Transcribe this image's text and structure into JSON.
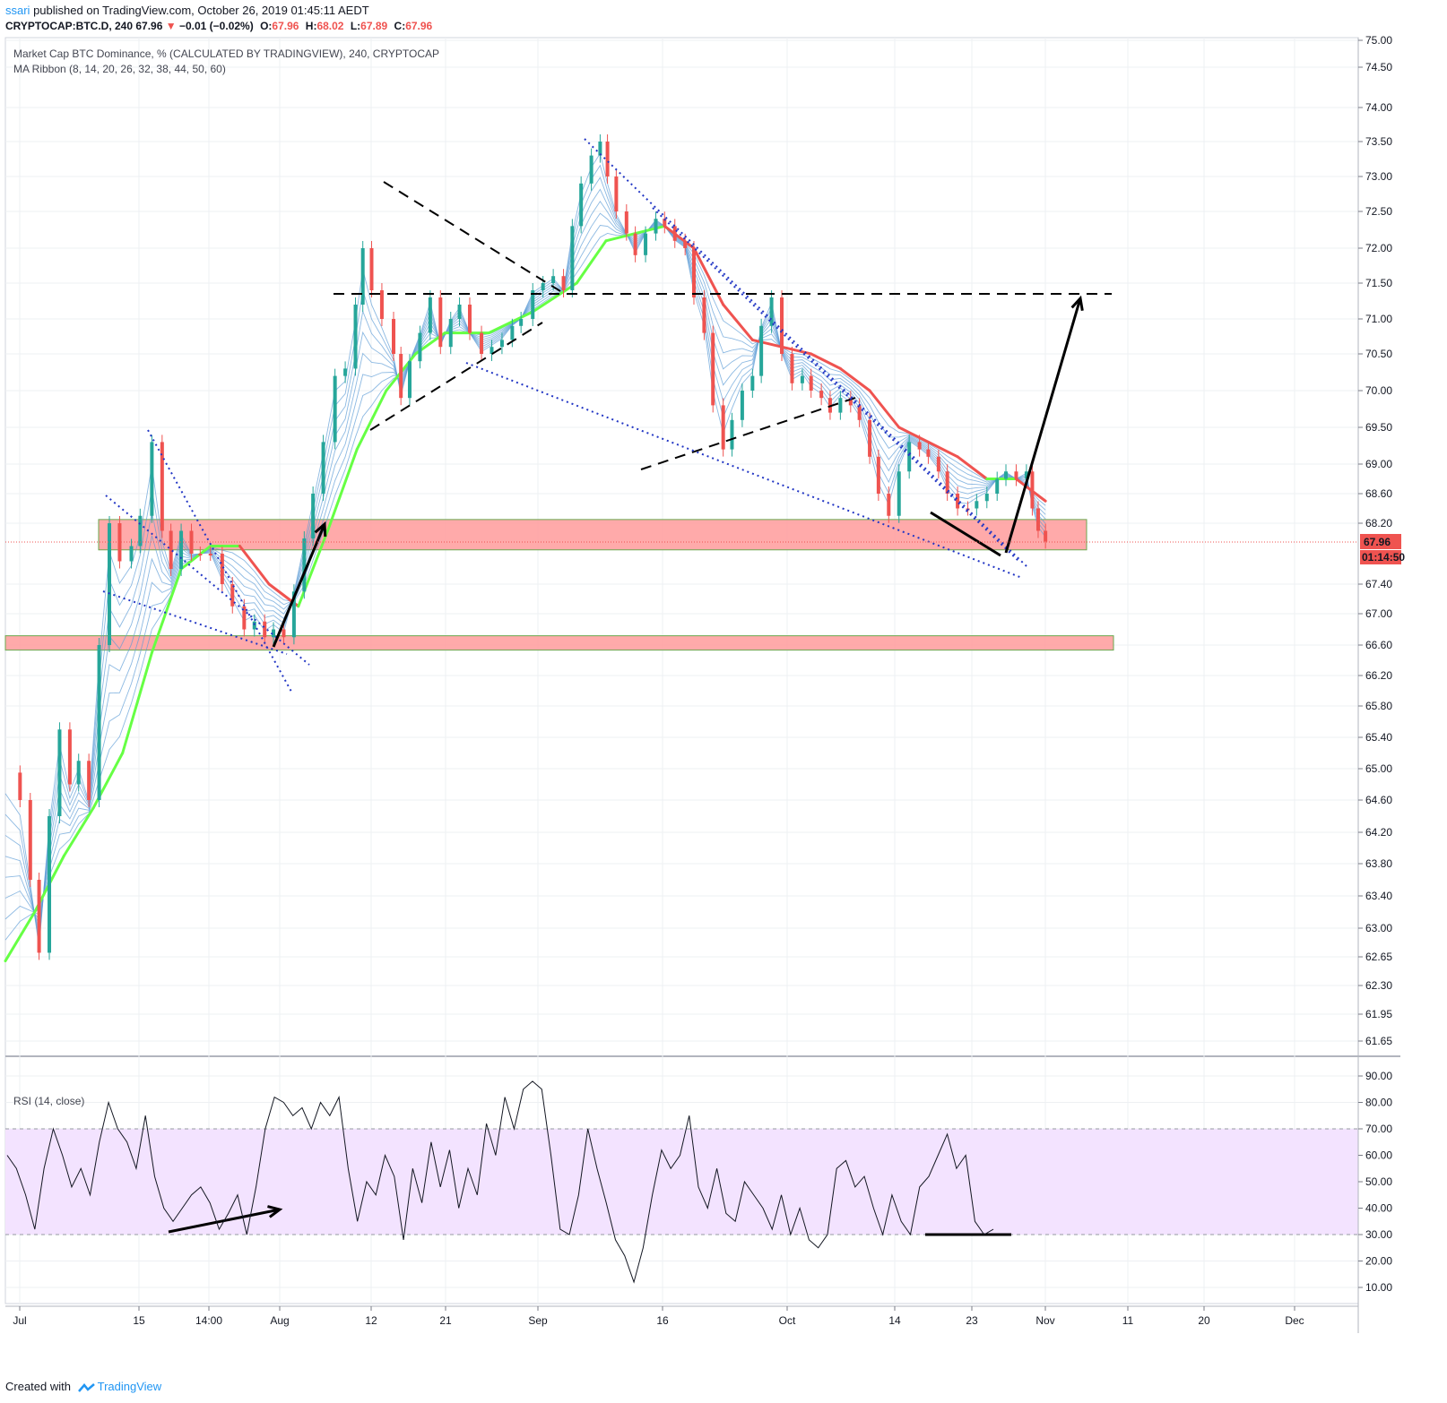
{
  "header": {
    "user": "ssari",
    "published_text": " published on TradingView.com, October 26, 2019 01:45:11 AEDT",
    "symbol_line": "CRYPTOCAP:BTC.D, 240",
    "last": "67.96",
    "change_icon": "down-triangle-icon",
    "change": "−0.01 (−0.02%)",
    "o_label": "O:",
    "o": "67.96",
    "h_label": "H:",
    "h": "68.02",
    "l_label": "L:",
    "l": "67.89",
    "c_label": "C:",
    "c": "67.96"
  },
  "legend": {
    "main_series": "Market Cap BTC Dominance, % (CALCULATED BY TRADINGVIEW), 240, CRYPTOCAP",
    "indicator": "MA Ribbon (8, 14, 20, 26, 32, 38, 44, 50, 60)",
    "rsi": "RSI (14, close)"
  },
  "footer": {
    "created_with": "Created with",
    "brand": "TradingView"
  },
  "colors": {
    "candle_up": "#26a69a",
    "candle_down": "#ef5350",
    "ribbon": "#5b9bd5",
    "ma_green": "#66ff44",
    "ma_red": "#ef5350",
    "zone": "#ff9b9b",
    "zone_border": "#6aa84f",
    "rsi_band": "#f3e3ff",
    "last_price_bg": "#ef5350"
  },
  "chart_data": [
    {
      "type": "line",
      "title": "Market Cap BTC Dominance, % (CALCULATED BY TRADINGVIEW), 240, CRYPTOCAP",
      "x_ticks": [
        "Jul",
        "15",
        "14:00",
        "Aug",
        "12",
        "21",
        "Sep",
        "16",
        "Oct",
        "14",
        "23",
        "Nov",
        "11",
        "20",
        "Dec"
      ],
      "y_ticks": [
        "75.00",
        "74.50",
        "74.00",
        "73.50",
        "73.00",
        "72.50",
        "72.00",
        "71.50",
        "71.00",
        "70.50",
        "70.00",
        "69.50",
        "69.00",
        "68.60",
        "68.20",
        "67.40",
        "67.00",
        "66.60",
        "66.20",
        "65.80",
        "65.40",
        "65.00",
        "64.60",
        "64.20",
        "63.80",
        "63.40",
        "63.00",
        "62.65",
        "62.30",
        "61.95",
        "61.65"
      ],
      "last_price_label": "67.96",
      "countdown_label": "01:14:50",
      "grid": true,
      "series": [
        {
          "name": "",
          "role": "price",
          "points": [
            [
              0,
              64.95
            ],
            [
              0.01,
              64.6
            ],
            [
              0.017,
              63.6
            ],
            [
              0.023,
              62.7
            ],
            [
              0.03,
              64.4
            ],
            [
              0.037,
              65.5
            ],
            [
              0.044,
              64.8
            ],
            [
              0.05,
              65.1
            ],
            [
              0.057,
              64.6
            ],
            [
              0.064,
              66.6
            ],
            [
              0.071,
              68.2
            ],
            [
              0.078,
              67.7
            ],
            [
              0.086,
              67.9
            ],
            [
              0.092,
              68.3
            ],
            [
              0.1,
              69.3
            ],
            [
              0.107,
              68.1
            ],
            [
              0.113,
              67.6
            ],
            [
              0.12,
              68.1
            ],
            [
              0.127,
              67.8
            ],
            [
              0.133,
              67.8
            ],
            [
              0.14,
              67.8
            ],
            [
              0.148,
              67.4
            ],
            [
              0.155,
              67.1
            ],
            [
              0.163,
              66.8
            ],
            [
              0.17,
              66.9
            ],
            [
              0.177,
              66.7
            ],
            [
              0.183,
              66.8
            ],
            [
              0.19,
              66.7
            ],
            [
              0.197,
              67.3
            ],
            [
              0.204,
              68.0
            ],
            [
              0.21,
              68.6
            ],
            [
              0.217,
              69.3
            ],
            [
              0.225,
              70.2
            ],
            [
              0.232,
              70.3
            ],
            [
              0.239,
              71.2
            ],
            [
              0.244,
              72.0
            ],
            [
              0.25,
              71.4
            ],
            [
              0.257,
              71.0
            ],
            [
              0.265,
              70.5
            ],
            [
              0.27,
              69.9
            ],
            [
              0.276,
              70.4
            ],
            [
              0.283,
              70.8
            ],
            [
              0.29,
              71.3
            ],
            [
              0.297,
              70.6
            ],
            [
              0.304,
              71.0
            ],
            [
              0.31,
              71.2
            ],
            [
              0.317,
              70.8
            ],
            [
              0.325,
              70.5
            ],
            [
              0.332,
              70.6
            ],
            [
              0.339,
              70.7
            ],
            [
              0.346,
              70.9
            ],
            [
              0.352,
              71.0
            ],
            [
              0.36,
              71.4
            ],
            [
              0.367,
              71.5
            ],
            [
              0.374,
              71.6
            ],
            [
              0.381,
              71.4
            ],
            [
              0.387,
              72.3
            ],
            [
              0.393,
              72.9
            ],
            [
              0.4,
              73.3
            ],
            [
              0.406,
              73.5
            ],
            [
              0.411,
              73.0
            ],
            [
              0.417,
              72.5
            ],
            [
              0.424,
              72.2
            ],
            [
              0.43,
              71.9
            ],
            [
              0.437,
              72.2
            ],
            [
              0.444,
              72.4
            ],
            [
              0.45,
              72.3
            ],
            [
              0.457,
              72.1
            ],
            [
              0.464,
              72.0
            ],
            [
              0.47,
              71.3
            ],
            [
              0.477,
              70.8
            ],
            [
              0.483,
              69.8
            ],
            [
              0.49,
              69.2
            ],
            [
              0.496,
              69.6
            ],
            [
              0.503,
              70.0
            ],
            [
              0.51,
              70.2
            ],
            [
              0.516,
              70.9
            ],
            [
              0.523,
              71.3
            ],
            [
              0.53,
              70.5
            ],
            [
              0.537,
              70.1
            ],
            [
              0.544,
              70.2
            ],
            [
              0.55,
              70.0
            ],
            [
              0.557,
              69.9
            ],
            [
              0.563,
              69.7
            ],
            [
              0.57,
              69.9
            ],
            [
              0.577,
              69.8
            ],
            [
              0.583,
              69.6
            ],
            [
              0.59,
              69.1
            ],
            [
              0.596,
              68.6
            ],
            [
              0.603,
              68.3
            ],
            [
              0.61,
              68.9
            ],
            [
              0.617,
              69.3
            ],
            [
              0.624,
              69.2
            ],
            [
              0.63,
              69.1
            ],
            [
              0.637,
              68.9
            ],
            [
              0.643,
              68.6
            ],
            [
              0.65,
              68.4
            ],
            [
              0.657,
              68.4
            ],
            [
              0.663,
              68.5
            ],
            [
              0.67,
              68.6
            ],
            [
              0.677,
              68.8
            ],
            [
              0.683,
              68.9
            ],
            [
              0.69,
              68.8
            ],
            [
              0.697,
              68.9
            ],
            [
              0.701,
              68.4
            ],
            [
              0.705,
              68.1
            ],
            [
              0.71,
              67.96
            ]
          ]
        },
        {
          "name": "",
          "role": "ma-ribbon-slow",
          "points": [
            [
              0,
              62.6
            ],
            [
              0.02,
              63.2
            ],
            [
              0.04,
              63.9
            ],
            [
              0.06,
              64.5
            ],
            [
              0.08,
              65.2
            ],
            [
              0.1,
              66.5
            ],
            [
              0.12,
              67.6
            ],
            [
              0.14,
              67.9
            ],
            [
              0.16,
              67.9
            ],
            [
              0.18,
              67.4
            ],
            [
              0.2,
              67.1
            ],
            [
              0.22,
              68.1
            ],
            [
              0.24,
              69.2
            ],
            [
              0.26,
              70.0
            ],
            [
              0.28,
              70.5
            ],
            [
              0.3,
              70.8
            ],
            [
              0.33,
              70.8
            ],
            [
              0.36,
              71.1
            ],
            [
              0.39,
              71.5
            ],
            [
              0.41,
              72.1
            ],
            [
              0.43,
              72.2
            ],
            [
              0.45,
              72.3
            ],
            [
              0.47,
              72.0
            ],
            [
              0.49,
              71.2
            ],
            [
              0.51,
              70.7
            ],
            [
              0.53,
              70.6
            ],
            [
              0.55,
              70.5
            ],
            [
              0.57,
              70.3
            ],
            [
              0.59,
              70.0
            ],
            [
              0.61,
              69.5
            ],
            [
              0.63,
              69.3
            ],
            [
              0.65,
              69.1
            ],
            [
              0.67,
              68.8
            ],
            [
              0.69,
              68.8
            ],
            [
              0.71,
              68.5
            ]
          ]
        }
      ],
      "zones": [
        {
          "name": "",
          "from": 67.85,
          "to": 68.25
        },
        {
          "name": "",
          "from": 66.45,
          "to": 66.65
        }
      ],
      "annotations": [
        {
          "name": "",
          "kind": "horizontal-dashed",
          "value": 71.35
        },
        {
          "name": "",
          "kind": "arrow-up-target",
          "value": 71.35
        }
      ]
    },
    {
      "type": "line",
      "title": "RSI (14, close)",
      "y_ticks": [
        "90.00",
        "80.00",
        "70.00",
        "60.00",
        "50.00",
        "40.00",
        "30.00",
        "20.00",
        "10.00"
      ],
      "ylim": [
        0,
        100
      ],
      "band": [
        30,
        70
      ],
      "series": [
        {
          "name": "",
          "values": [
            60,
            55,
            45,
            32,
            55,
            70,
            60,
            48,
            55,
            45,
            65,
            80,
            70,
            65,
            55,
            75,
            52,
            40,
            35,
            40,
            45,
            48,
            42,
            32,
            38,
            45,
            30,
            48,
            70,
            82,
            80,
            75,
            78,
            70,
            80,
            75,
            82,
            55,
            35,
            50,
            45,
            60,
            52,
            28,
            55,
            42,
            65,
            48,
            62,
            40,
            55,
            45,
            72,
            60,
            82,
            70,
            85,
            88,
            85,
            60,
            32,
            30,
            45,
            70,
            55,
            42,
            28,
            22,
            12,
            25,
            45,
            62,
            55,
            60,
            75,
            48,
            40,
            55,
            38,
            35,
            50,
            45,
            40,
            32,
            45,
            30,
            40,
            28,
            25,
            30,
            55,
            58,
            48,
            52,
            40,
            30,
            45,
            35,
            30,
            48,
            52,
            60,
            68,
            55,
            60,
            35,
            30,
            32
          ]
        }
      ]
    }
  ]
}
